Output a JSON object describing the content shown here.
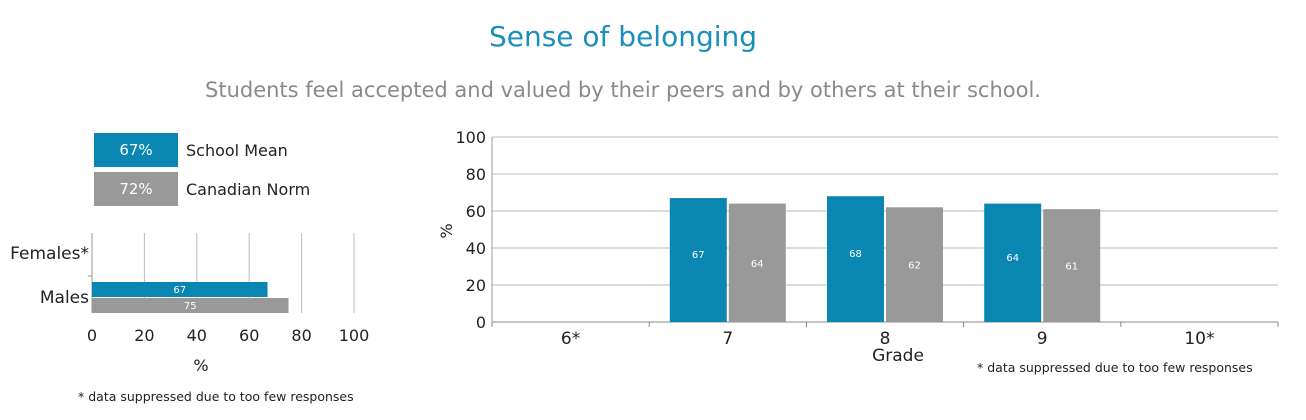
{
  "title": "Sense of belonging",
  "subtitle": "Students feel accepted and valued by their peers and by others at their school.",
  "colors": {
    "school": "#0a86b3",
    "norm": "#999999",
    "title": "#1a8fb8"
  },
  "legend": [
    {
      "value": "67%",
      "label": "School Mean",
      "color": "#0a86b3"
    },
    {
      "value": "72%",
      "label": "Canadian Norm",
      "color": "#999999"
    }
  ],
  "footnote": "* data suppressed due to too few responses",
  "chart_data": [
    {
      "type": "bar",
      "orientation": "horizontal",
      "categories": [
        "Females*",
        "Males"
      ],
      "series": [
        {
          "values": [
            null,
            67
          ]
        },
        {
          "values": [
            null,
            75
          ]
        }
      ],
      "xlabel": "%",
      "xlim": [
        0,
        100
      ],
      "ticks": [
        "0",
        "20",
        "40",
        "60",
        "80",
        "100"
      ],
      "grid": true
    },
    {
      "type": "bar",
      "orientation": "vertical",
      "categories": [
        "6*",
        "7",
        "8",
        "9",
        "10*"
      ],
      "series": [
        {
          "values": [
            null,
            67,
            68,
            64,
            null
          ]
        },
        {
          "values": [
            null,
            64,
            62,
            61,
            null
          ]
        }
      ],
      "xlabel": "Grade",
      "ylabel": "%",
      "ylim": [
        0,
        100
      ],
      "ticks": [
        "0",
        "20",
        "40",
        "60",
        "80",
        "100"
      ],
      "grid": true
    }
  ]
}
